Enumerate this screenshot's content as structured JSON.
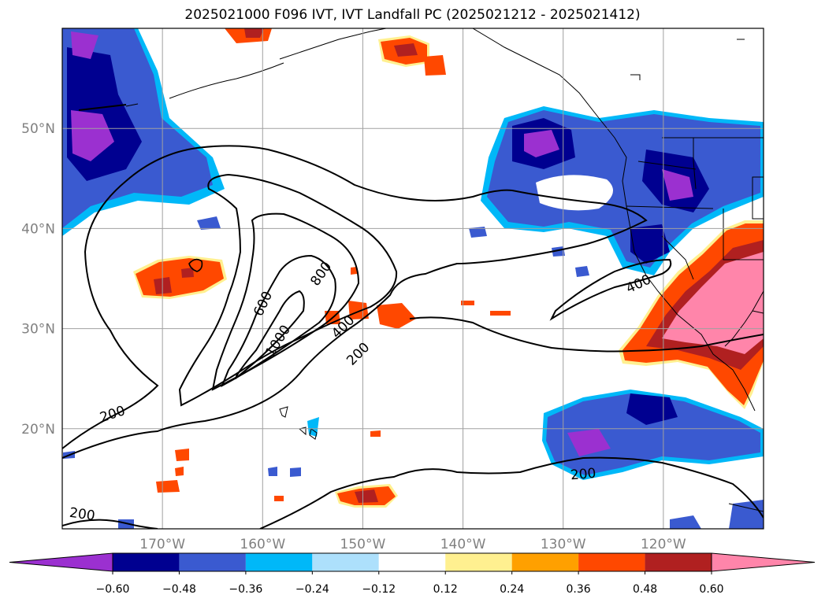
{
  "title": "2025021000 F096 IVT, IVT Landfall PC (2025021212 - 2025021412)",
  "map": {
    "lon_range": [
      -180,
      -110
    ],
    "lat_range": [
      10,
      60
    ],
    "lon_ticks": [
      {
        "value": -170,
        "label": "170°W"
      },
      {
        "value": -160,
        "label": "160°W"
      },
      {
        "value": -150,
        "label": "150°W"
      },
      {
        "value": -140,
        "label": "140°W"
      },
      {
        "value": -130,
        "label": "130°W"
      },
      {
        "value": -120,
        "label": "120°W"
      }
    ],
    "lat_ticks": [
      {
        "value": 20,
        "label": "20°N"
      },
      {
        "value": 30,
        "label": "30°N"
      },
      {
        "value": 40,
        "label": "40°N"
      },
      {
        "value": 50,
        "label": "50°N"
      }
    ],
    "grid": true,
    "ivt_contour_labels": [
      {
        "text": "200",
        "lon": -175,
        "lat": 21.5,
        "rot": -18
      },
      {
        "text": "200",
        "lon": -150.5,
        "lat": 27.5,
        "rot": -45
      },
      {
        "text": "200",
        "lon": -128,
        "lat": 15.5,
        "rot": -5
      },
      {
        "text": "200",
        "lon": -178,
        "lat": 11.5,
        "rot": 8
      },
      {
        "text": "400",
        "lon": -152,
        "lat": 30.2,
        "rot": -45
      },
      {
        "text": "400",
        "lon": -122.5,
        "lat": 34.5,
        "rot": -25
      },
      {
        "text": "600",
        "lon": -160,
        "lat": 32.5,
        "rot": -65
      },
      {
        "text": "800",
        "lon": -154.2,
        "lat": 35.5,
        "rot": -55
      },
      {
        "text": "1000",
        "lon": -158.5,
        "lat": 28.8,
        "rot": -58
      }
    ]
  },
  "colorbar": {
    "colors": [
      "#9b30d0",
      "#000090",
      "#3a5ad0",
      "#00b8f8",
      "#ade0fc",
      "#ffffff",
      "#fff090",
      "#ffa000",
      "#ff4800",
      "#b02020",
      "#ff85aa"
    ],
    "ticks": [
      "−0.60",
      "−0.48",
      "−0.36",
      "−0.24",
      "−0.12",
      "0.12",
      "0.24",
      "0.36",
      "0.48",
      "0.60"
    ]
  }
}
